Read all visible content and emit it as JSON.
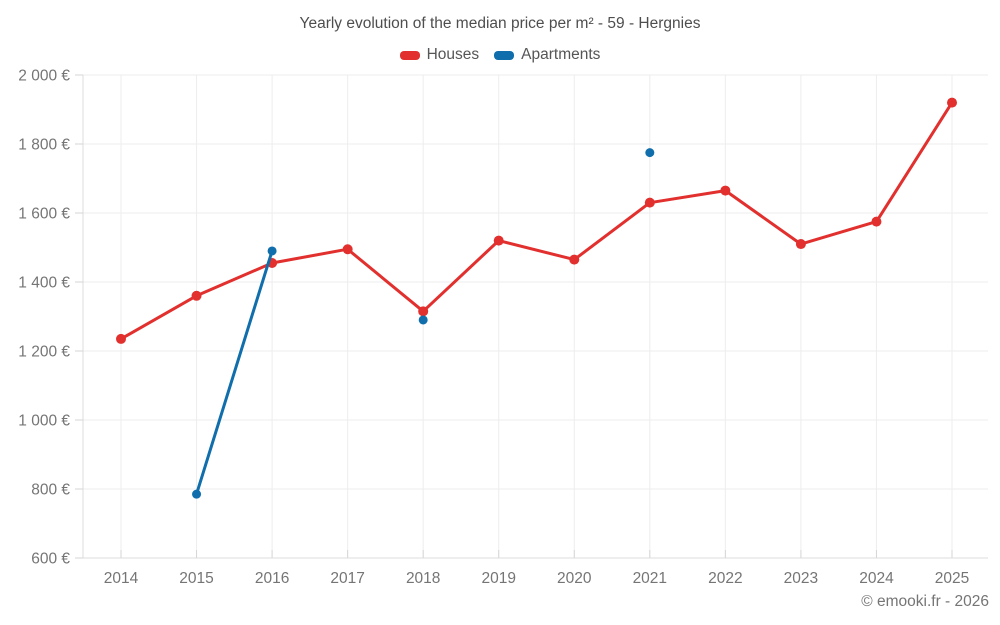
{
  "page": {
    "title": "Yearly evolution of the median price per m² - 59 - Hergnies",
    "footer": "© emooki.fr - 2026"
  },
  "chart_data": {
    "type": "line",
    "title": "Yearly evolution of the median price per m² - 59 - Hergnies",
    "categories": [
      "2014",
      "2015",
      "2016",
      "2017",
      "2018",
      "2019",
      "2020",
      "2021",
      "2022",
      "2023",
      "2024",
      "2025"
    ],
    "series": [
      {
        "name": "Houses",
        "color": "#e1302e",
        "values": [
          1235,
          1360,
          1455,
          1495,
          1315,
          1520,
          1465,
          1630,
          1665,
          1510,
          1575,
          1920
        ]
      },
      {
        "name": "Apartments",
        "color": "#0f6eab",
        "values": [
          null,
          785,
          1490,
          null,
          1290,
          null,
          null,
          1775,
          null,
          null,
          null,
          null
        ]
      }
    ],
    "xlabel": "",
    "ylabel": "",
    "ylim": [
      600,
      2000
    ],
    "yticks": [
      {
        "value": 600,
        "label": "600 €"
      },
      {
        "value": 800,
        "label": "800 €"
      },
      {
        "value": 1000,
        "label": "1 000 €"
      },
      {
        "value": 1200,
        "label": "1 200 €"
      },
      {
        "value": 1400,
        "label": "1 400 €"
      },
      {
        "value": 1600,
        "label": "1 600 €"
      },
      {
        "value": 1800,
        "label": "1 800 €"
      },
      {
        "value": 2000,
        "label": "2 000 €"
      }
    ],
    "grid": true,
    "legend_position": "top-center",
    "colors": {
      "grid_line": "#ededed",
      "axis_line": "#dcdcdc",
      "tick": "#d6d6d6",
      "tick_label": "#757575",
      "title_text": "#4e4e4e",
      "legend_text": "#565656",
      "background": "#ffffff"
    }
  }
}
